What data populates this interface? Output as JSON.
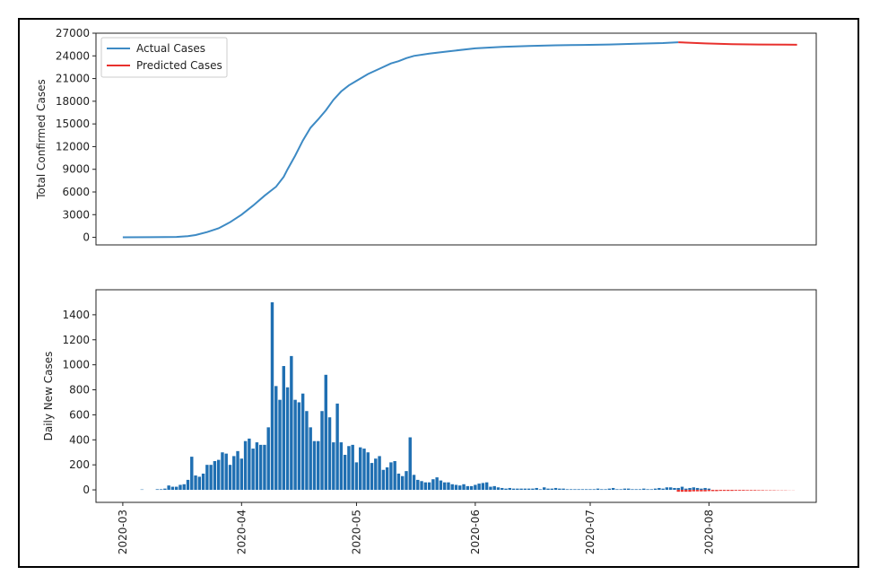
{
  "chart_data": [
    {
      "type": "line",
      "title": "",
      "xlabel": "",
      "ylabel": "Total Confirmed Cases",
      "ylim": [
        -1000,
        27000
      ],
      "yticks": [
        0,
        3000,
        6000,
        9000,
        12000,
        15000,
        18000,
        21000,
        24000,
        27000
      ],
      "xlim": [
        "2020-02-23",
        "2020-08-29"
      ],
      "legend": "top-left",
      "grid": false,
      "series": [
        {
          "name": "Actual Cases",
          "color": "#3d8ac4",
          "x": [
            "2020-03-01",
            "2020-03-08",
            "2020-03-12",
            "2020-03-15",
            "2020-03-18",
            "2020-03-20",
            "2020-03-23",
            "2020-03-26",
            "2020-03-29",
            "2020-04-01",
            "2020-04-04",
            "2020-04-07",
            "2020-04-10",
            "2020-04-12",
            "2020-04-13",
            "2020-04-15",
            "2020-04-17",
            "2020-04-19",
            "2020-04-21",
            "2020-04-23",
            "2020-04-25",
            "2020-04-27",
            "2020-04-29",
            "2020-05-01",
            "2020-05-04",
            "2020-05-07",
            "2020-05-10",
            "2020-05-12",
            "2020-05-14",
            "2020-05-16",
            "2020-05-20",
            "2020-05-25",
            "2020-06-01",
            "2020-06-08",
            "2020-06-15",
            "2020-06-22",
            "2020-06-29",
            "2020-07-06",
            "2020-07-13",
            "2020-07-20",
            "2020-07-24"
          ],
          "values": [
            10,
            15,
            30,
            60,
            150,
            300,
            700,
            1200,
            2000,
            3000,
            4200,
            5500,
            6700,
            8000,
            9000,
            10800,
            12800,
            14500,
            15600,
            16800,
            18200,
            19300,
            20100,
            20700,
            21600,
            22300,
            23000,
            23300,
            23700,
            24000,
            24300,
            24600,
            25000,
            25200,
            25300,
            25400,
            25450,
            25500,
            25600,
            25700,
            25800
          ]
        },
        {
          "name": "Predicted Cases",
          "color": "#e8302d",
          "x": [
            "2020-07-24",
            "2020-07-31",
            "2020-08-07",
            "2020-08-14",
            "2020-08-21",
            "2020-08-24"
          ],
          "values": [
            25800,
            25650,
            25550,
            25500,
            25480,
            25470
          ]
        }
      ]
    },
    {
      "type": "bar",
      "title": "",
      "xlabel": "",
      "ylabel": "Daily New Cases",
      "ylim": [
        -100,
        1600
      ],
      "yticks": [
        0,
        200,
        400,
        600,
        800,
        1000,
        1200,
        1400
      ],
      "xlim": [
        "2020-02-23",
        "2020-08-29"
      ],
      "xticks": [
        "2020-03",
        "2020-04",
        "2020-05",
        "2020-06",
        "2020-07",
        "2020-08"
      ],
      "legend": "none",
      "grid": false,
      "series": [
        {
          "name": "",
          "color": "#1f6fb2",
          "start": "2020-03-01",
          "values": [
            0,
            0,
            0,
            0,
            0,
            3,
            0,
            0,
            0,
            5,
            5,
            10,
            35,
            25,
            25,
            40,
            45,
            80,
            265,
            115,
            105,
            130,
            200,
            200,
            230,
            240,
            300,
            290,
            200,
            270,
            310,
            250,
            390,
            410,
            330,
            380,
            360,
            360,
            500,
            1500,
            830,
            720,
            990,
            820,
            1070,
            720,
            700,
            770,
            630,
            500,
            390,
            390,
            630,
            920,
            580,
            380,
            690,
            380,
            280,
            350,
            360,
            220,
            340,
            330,
            300,
            215,
            250,
            270,
            160,
            180,
            220,
            230,
            130,
            110,
            150,
            420,
            120,
            80,
            70,
            60,
            60,
            85,
            100,
            75,
            60,
            60,
            45,
            40,
            35,
            45,
            30,
            30,
            40,
            50,
            55,
            60,
            25,
            30,
            20,
            15,
            10,
            15,
            10,
            10,
            10,
            10,
            10,
            10,
            15,
            5,
            20,
            10,
            10,
            15,
            10,
            10,
            5,
            5,
            5,
            5,
            5,
            5,
            5,
            5,
            10,
            5,
            5,
            10,
            15,
            5,
            5,
            10,
            10,
            5,
            5,
            5,
            10,
            5,
            5,
            10,
            15,
            10,
            20,
            20,
            15,
            15,
            25,
            10,
            15,
            20,
            15,
            10,
            15,
            10
          ]
        },
        {
          "name": "",
          "color": "#e8302d",
          "start": "2020-07-24",
          "values": [
            -15,
            -15,
            -15,
            -15,
            -12,
            -12,
            -12,
            -12,
            -10,
            -10,
            -10,
            -8,
            -8,
            -8,
            -8,
            -6,
            -6,
            -6,
            -5,
            -5,
            -5,
            -4,
            -4,
            -3,
            -3,
            -3,
            -2,
            -2,
            -2,
            -1,
            -1
          ]
        }
      ]
    }
  ]
}
